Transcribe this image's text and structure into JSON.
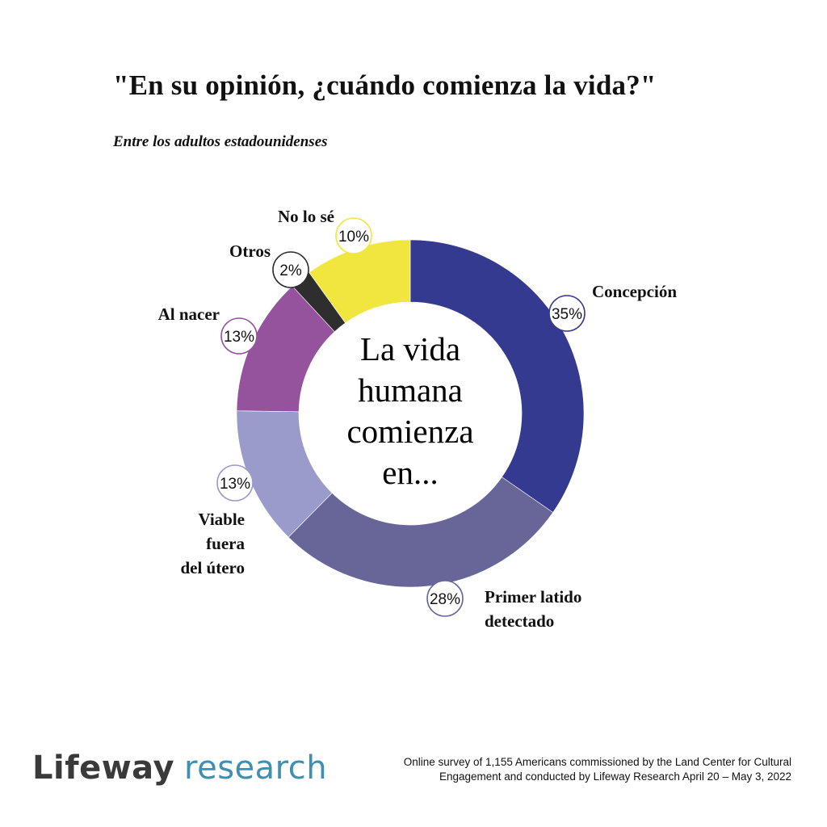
{
  "chart_data": {
    "type": "pie",
    "title": "\"En su opinión, ¿cuándo comienza la vida?\"",
    "subtitle": "Entre los adultos estadounidenses",
    "center_text": [
      "La vida",
      "humana",
      "comienza",
      "en..."
    ],
    "slices": [
      {
        "label": [
          "Concepción"
        ],
        "value": 35,
        "value_label": "35%",
        "color": "#343a90"
      },
      {
        "label": [
          "Primer latido",
          "detectado"
        ],
        "value": 28,
        "value_label": "28%",
        "color": "#686699"
      },
      {
        "label": [
          "Viable",
          "fuera",
          "del útero"
        ],
        "value": 13,
        "value_label": "13%",
        "color": "#9a9bcb"
      },
      {
        "label": [
          "Al nacer"
        ],
        "value": 13,
        "value_label": "13%",
        "color": "#96539d"
      },
      {
        "label": [
          "Otros"
        ],
        "value": 2,
        "value_label": "2%",
        "color": "#2e2e2e"
      },
      {
        "label": [
          "No lo sé"
        ],
        "value": 10,
        "value_label": "10%",
        "color": "#f1e63e"
      }
    ]
  },
  "logo": {
    "word1": "Lifeway",
    "word2": "research"
  },
  "source": {
    "line1": "Online survey of 1,155 Americans commissioned by the Land Center for Cultural",
    "line2": "Engagement and conducted by Lifeway Research April 20 – May 3, 2022"
  }
}
